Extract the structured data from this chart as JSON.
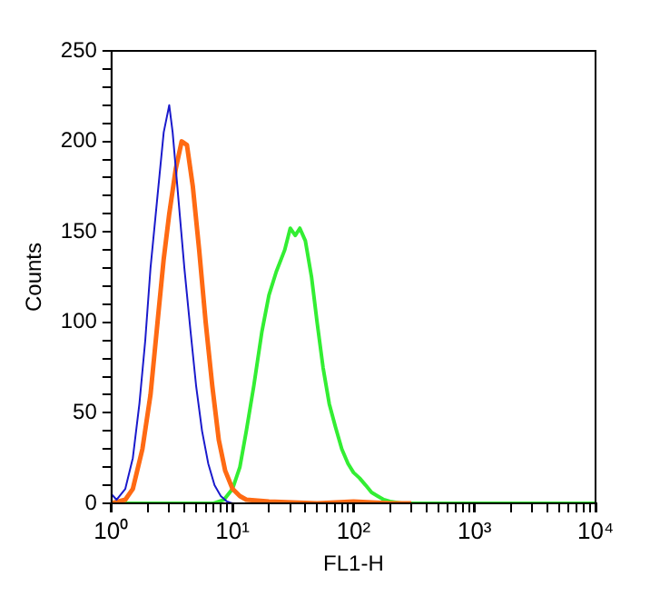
{
  "chart_data": {
    "type": "line",
    "xlabel": "FL1-H",
    "ylabel": "Counts",
    "log": "x",
    "grid": false,
    "legend": false,
    "marker": "none",
    "line_style": "solid",
    "xlim": [
      1,
      10000
    ],
    "ylim": [
      0,
      250
    ],
    "xticks": [
      {
        "value": 1,
        "label": "10⁰"
      },
      {
        "value": 2,
        "label": null
      },
      {
        "value": 3,
        "label": null
      },
      {
        "value": 4,
        "label": null
      },
      {
        "value": 5,
        "label": null
      },
      {
        "value": 6,
        "label": null
      },
      {
        "value": 7,
        "label": null
      },
      {
        "value": 8,
        "label": null
      },
      {
        "value": 9,
        "label": null
      },
      {
        "value": 10,
        "label": "10¹"
      },
      {
        "value": 20,
        "label": null
      },
      {
        "value": 30,
        "label": null
      },
      {
        "value": 40,
        "label": null
      },
      {
        "value": 50,
        "label": null
      },
      {
        "value": 60,
        "label": null
      },
      {
        "value": 70,
        "label": null
      },
      {
        "value": 80,
        "label": null
      },
      {
        "value": 90,
        "label": null
      },
      {
        "value": 100,
        "label": "10²"
      },
      {
        "value": 200,
        "label": null
      },
      {
        "value": 300,
        "label": null
      },
      {
        "value": 400,
        "label": null
      },
      {
        "value": 500,
        "label": null
      },
      {
        "value": 600,
        "label": null
      },
      {
        "value": 700,
        "label": null
      },
      {
        "value": 800,
        "label": null
      },
      {
        "value": 900,
        "label": null
      },
      {
        "value": 1000,
        "label": "10³"
      },
      {
        "value": 2000,
        "label": null
      },
      {
        "value": 3000,
        "label": null
      },
      {
        "value": 4000,
        "label": null
      },
      {
        "value": 5000,
        "label": null
      },
      {
        "value": 6000,
        "label": null
      },
      {
        "value": 7000,
        "label": null
      },
      {
        "value": 8000,
        "label": null
      },
      {
        "value": 9000,
        "label": null
      },
      {
        "value": 10000,
        "label": "10⁴"
      }
    ],
    "yticks": [
      0,
      {
        "value": 10,
        "label": null
      },
      {
        "value": 20,
        "label": null
      },
      {
        "value": 30,
        "label": null
      },
      {
        "value": 40,
        "label": null
      },
      50,
      {
        "value": 60,
        "label": null
      },
      {
        "value": 70,
        "label": null
      },
      {
        "value": 80,
        "label": null
      },
      {
        "value": 90,
        "label": null
      },
      100,
      {
        "value": 110,
        "label": null
      },
      {
        "value": 120,
        "label": null
      },
      {
        "value": 130,
        "label": null
      },
      {
        "value": 140,
        "label": null
      },
      150,
      {
        "value": 160,
        "label": null
      },
      {
        "value": 170,
        "label": null
      },
      {
        "value": 180,
        "label": null
      },
      {
        "value": 190,
        "label": null
      },
      200,
      {
        "value": 210,
        "label": null
      },
      {
        "value": 220,
        "label": null
      },
      {
        "value": 230,
        "label": null
      },
      {
        "value": 240,
        "label": null
      },
      250
    ],
    "series": [
      {
        "color": "#1a1acc",
        "x": [
          1,
          1.1,
          1.3,
          1.5,
          1.7,
          1.9,
          2.1,
          2.4,
          2.7,
          3,
          3.2,
          3.5,
          4,
          4.5,
          5,
          5.6,
          6.3,
          7.1,
          8,
          9,
          10
        ],
        "values": [
          5,
          2,
          8,
          25,
          55,
          90,
          130,
          170,
          205,
          220,
          205,
          175,
          130,
          95,
          65,
          40,
          22,
          10,
          4,
          1,
          0
        ]
      },
      {
        "color": "#ff6a13",
        "x": [
          1,
          1.3,
          1.5,
          1.8,
          2.1,
          2.4,
          2.7,
          3,
          3.4,
          3.8,
          4.2,
          4.7,
          5.3,
          6,
          6.8,
          7.7,
          8.7,
          10,
          11.5,
          13,
          20,
          50,
          100,
          200,
          300
        ],
        "values": [
          0,
          2,
          8,
          30,
          60,
          100,
          135,
          160,
          185,
          200,
          198,
          175,
          140,
          100,
          65,
          35,
          18,
          8,
          4,
          2,
          1,
          0,
          1,
          0,
          0
        ]
      },
      {
        "color": "#33ee33",
        "x": [
          1,
          7,
          8.5,
          10,
          11.5,
          13,
          15,
          17.5,
          20,
          23,
          27,
          30,
          33,
          36,
          40,
          45,
          50,
          56,
          63,
          71,
          80,
          90,
          100,
          112,
          126,
          141,
          158,
          178,
          200,
          250,
          10000
        ],
        "values": [
          0,
          0,
          2,
          8,
          20,
          40,
          65,
          95,
          115,
          128,
          140,
          152,
          148,
          152,
          145,
          125,
          100,
          75,
          55,
          42,
          30,
          22,
          17,
          14,
          10,
          6,
          4,
          2,
          1,
          0,
          0
        ]
      }
    ]
  }
}
